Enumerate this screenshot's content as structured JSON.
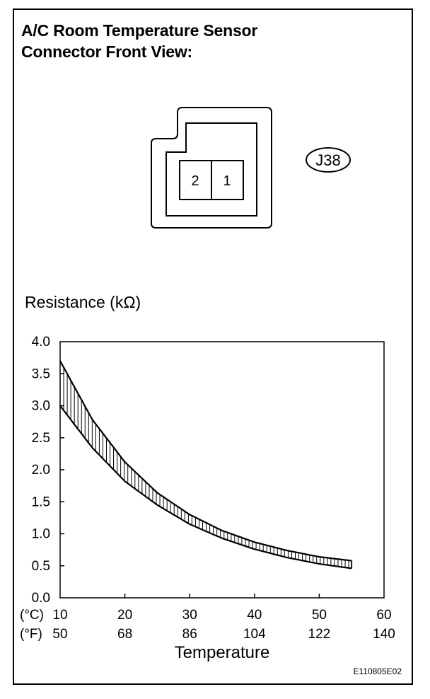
{
  "title_lines": [
    "A/C Room Temperature Sensor",
    "Connector Front View:"
  ],
  "connector": {
    "id": "J38",
    "pins": [
      "2",
      "1"
    ]
  },
  "chart_data": {
    "type": "area",
    "ylabel": "Resistance (kΩ)",
    "xlabel": "Temperature",
    "y_ticks": [
      "4.0",
      "3.5",
      "3.0",
      "2.5",
      "2.0",
      "1.5",
      "1.0",
      "0.5",
      "0.0"
    ],
    "ylim": [
      0,
      4.0
    ],
    "xlim_c": [
      10,
      60
    ],
    "x_unit_c": "(°C)",
    "x_unit_f": "(°F)",
    "x_ticks_c": [
      "10",
      "20",
      "30",
      "40",
      "50",
      "60"
    ],
    "x_ticks_f": [
      "50",
      "68",
      "86",
      "104",
      "122",
      "140"
    ],
    "grid": false,
    "series": [
      {
        "role": "upper",
        "x": [
          10,
          15,
          20,
          25,
          30,
          35,
          40,
          45,
          50,
          55
        ],
        "values": [
          3.7,
          2.78,
          2.12,
          1.64,
          1.3,
          1.05,
          0.87,
          0.74,
          0.64,
          0.58
        ]
      },
      {
        "role": "lower",
        "x": [
          10,
          15,
          20,
          25,
          30,
          35,
          40,
          45,
          50,
          55
        ],
        "values": [
          3.0,
          2.34,
          1.82,
          1.45,
          1.15,
          0.93,
          0.76,
          0.63,
          0.53,
          0.46
        ]
      }
    ]
  },
  "figure_code": "E110805E02"
}
